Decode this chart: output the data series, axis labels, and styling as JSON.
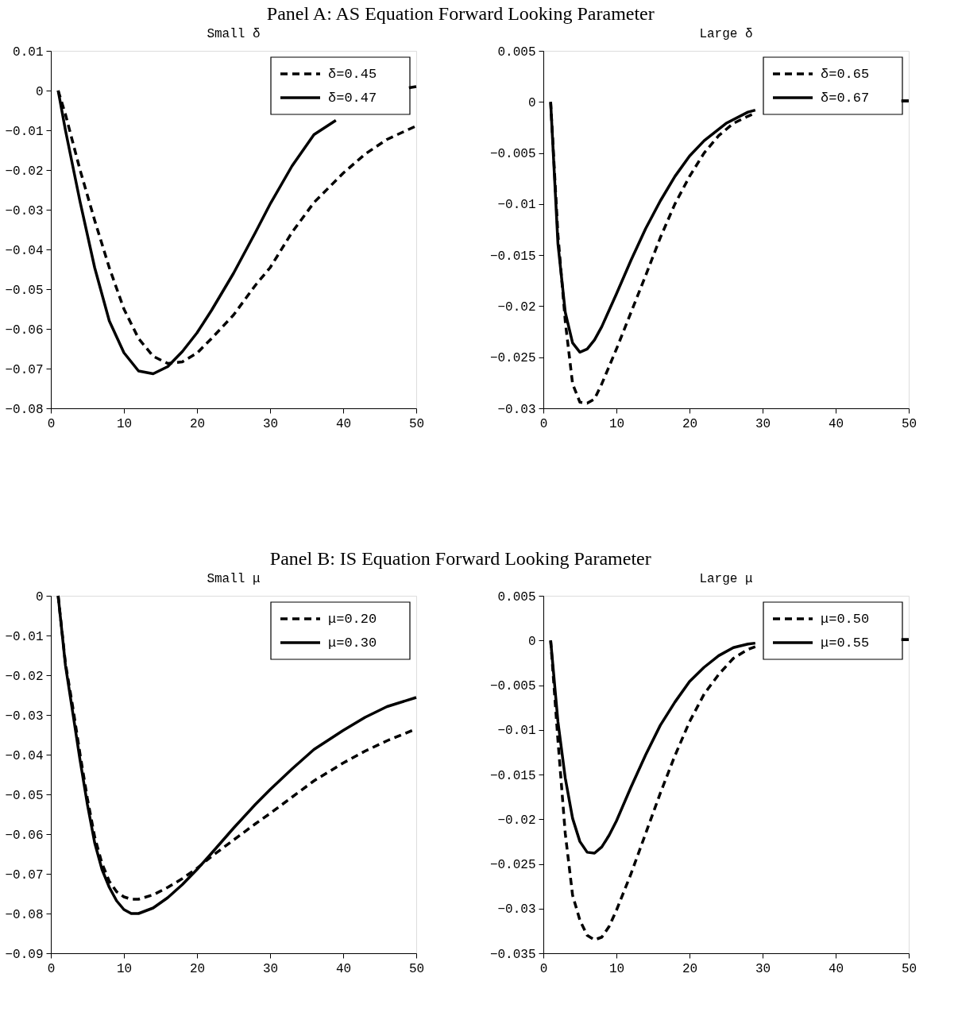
{
  "chart_data": [
    {
      "type": "line",
      "title": "Panel A: AS Equation Forward Looking Parameter",
      "subtitle": "Small δ",
      "xlim": [
        0,
        50
      ],
      "xticks": [
        0,
        10,
        20,
        30,
        40,
        50
      ],
      "ylim": [
        -0.08,
        0.01
      ],
      "yticks": [
        -0.08,
        -0.07,
        -0.06,
        -0.05,
        -0.04,
        -0.03,
        -0.02,
        -0.01,
        0,
        0.01
      ],
      "legend": "top right",
      "grid": false,
      "marker": "none",
      "series": [
        {
          "name": "δ=0.45",
          "color": "#000000",
          "line_style": "dashed",
          "x": [
            1,
            2,
            3,
            4,
            6,
            8,
            10,
            12,
            14,
            16,
            18,
            20,
            22,
            25,
            28,
            30,
            33,
            36,
            40,
            43,
            46,
            50
          ],
          "values": [
            0,
            -0.006,
            -0.013,
            -0.02,
            -0.0327,
            -0.0446,
            -0.055,
            -0.0624,
            -0.0669,
            -0.0687,
            -0.0683,
            -0.0661,
            -0.0624,
            -0.0565,
            -0.049,
            -0.0446,
            -0.0357,
            -0.0282,
            -0.0208,
            -0.016,
            -0.0123,
            -0.0089
          ]
        },
        {
          "name": "δ=0.47",
          "color": "#000000",
          "line_style": "solid",
          "x": [
            1,
            2,
            4,
            6,
            8,
            10,
            12,
            14,
            16,
            18,
            20,
            22,
            25,
            28,
            30,
            33,
            36,
            39,
            40,
            49,
            50
          ],
          "values": [
            0,
            -0.01,
            -0.028,
            -0.0446,
            -0.058,
            -0.066,
            -0.0706,
            -0.0713,
            -0.0695,
            -0.0657,
            -0.061,
            -0.0553,
            -0.046,
            -0.0357,
            -0.0286,
            -0.019,
            -0.0111,
            -0.0075,
            null,
            0.0007,
            0.001
          ]
        }
      ]
    },
    {
      "type": "line",
      "subtitle": "Large δ",
      "xlim": [
        0,
        50
      ],
      "xticks": [
        0,
        10,
        20,
        30,
        40,
        50
      ],
      "ylim": [
        -0.03,
        0.005
      ],
      "yticks": [
        -0.03,
        -0.025,
        -0.02,
        -0.015,
        -0.01,
        -0.005,
        0,
        0.005
      ],
      "legend": "top right",
      "grid": false,
      "marker": "none",
      "series": [
        {
          "name": "δ=0.65",
          "color": "#000000",
          "line_style": "dashed",
          "x": [
            1,
            2,
            3,
            4,
            5,
            6,
            7,
            8,
            10,
            12,
            14,
            16,
            18,
            20,
            22,
            24,
            26,
            28,
            29,
            30,
            49,
            50
          ],
          "values": [
            0,
            -0.013,
            -0.0215,
            -0.0276,
            -0.0294,
            -0.0295,
            -0.0291,
            -0.0276,
            -0.0242,
            -0.0206,
            -0.017,
            -0.0133,
            -0.01,
            -0.0073,
            -0.005,
            -0.0033,
            -0.0021,
            -0.0014,
            -0.0011,
            null,
            0.0001,
            0.0001
          ]
        },
        {
          "name": "δ=0.67",
          "color": "#000000",
          "line_style": "solid",
          "x": [
            1,
            2,
            3,
            4,
            5,
            6,
            7,
            8,
            10,
            12,
            14,
            16,
            18,
            20,
            22,
            25,
            28,
            29,
            30,
            49,
            50
          ],
          "values": [
            0,
            -0.0139,
            -0.0206,
            -0.0236,
            -0.0245,
            -0.0242,
            -0.0233,
            -0.022,
            -0.0188,
            -0.0155,
            -0.0124,
            -0.0097,
            -0.0073,
            -0.0053,
            -0.0038,
            -0.0021,
            -0.001,
            -0.0008,
            null,
            0.0001,
            0.0001
          ]
        }
      ]
    },
    {
      "type": "line",
      "title": "Panel B: IS Equation Forward Looking Parameter",
      "subtitle": "Small μ",
      "xlim": [
        0,
        50
      ],
      "xticks": [
        0,
        10,
        20,
        30,
        40,
        50
      ],
      "ylim": [
        -0.09,
        0
      ],
      "yticks": [
        -0.09,
        -0.08,
        -0.07,
        -0.06,
        -0.05,
        -0.04,
        -0.03,
        -0.02,
        -0.01,
        0
      ],
      "legend": "top right",
      "grid": false,
      "marker": "none",
      "series": [
        {
          "name": "μ=0.20",
          "color": "#000000",
          "line_style": "dashed",
          "x": [
            1,
            2,
            3,
            4,
            5,
            6,
            7,
            8,
            9,
            10,
            11,
            12,
            14,
            16,
            18,
            20,
            22,
            25,
            28,
            30,
            33,
            36,
            40,
            43,
            46,
            50
          ],
          "values": [
            0,
            -0.017,
            -0.028,
            -0.0399,
            -0.051,
            -0.0607,
            -0.0674,
            -0.0719,
            -0.0745,
            -0.0758,
            -0.0764,
            -0.0764,
            -0.0753,
            -0.0734,
            -0.0712,
            -0.0686,
            -0.0656,
            -0.0615,
            -0.0574,
            -0.0548,
            -0.0507,
            -0.0466,
            -0.0421,
            -0.0391,
            -0.0365,
            -0.0335
          ]
        },
        {
          "name": "μ=0.30",
          "color": "#000000",
          "line_style": "solid",
          "x": [
            1,
            2,
            3,
            4,
            5,
            6,
            7,
            8,
            9,
            10,
            11,
            12,
            14,
            16,
            18,
            20,
            22,
            25,
            28,
            30,
            33,
            36,
            40,
            43,
            46,
            50
          ],
          "values": [
            0,
            -0.0175,
            -0.0294,
            -0.0414,
            -0.0525,
            -0.0622,
            -0.0689,
            -0.0734,
            -0.0768,
            -0.079,
            -0.08,
            -0.08,
            -0.0786,
            -0.076,
            -0.0727,
            -0.0689,
            -0.0648,
            -0.0585,
            -0.0525,
            -0.0488,
            -0.0436,
            -0.0387,
            -0.0339,
            -0.0306,
            -0.0279,
            -0.0256
          ]
        }
      ]
    },
    {
      "type": "line",
      "subtitle": "Large μ",
      "xlim": [
        0,
        50
      ],
      "xticks": [
        0,
        10,
        20,
        30,
        40,
        50
      ],
      "ylim": [
        -0.035,
        0.005
      ],
      "yticks": [
        -0.035,
        -0.03,
        -0.025,
        -0.02,
        -0.015,
        -0.01,
        -0.005,
        0,
        0.005
      ],
      "legend": "top right",
      "grid": false,
      "marker": "none",
      "series": [
        {
          "name": "μ=0.50",
          "color": "#000000",
          "line_style": "dashed",
          "x": [
            1,
            2,
            3,
            4,
            5,
            6,
            7,
            8,
            9,
            10,
            12,
            14,
            16,
            18,
            20,
            22,
            24,
            26,
            28,
            29,
            30,
            49,
            50
          ],
          "values": [
            0,
            -0.0112,
            -0.0216,
            -0.0285,
            -0.0313,
            -0.033,
            -0.0335,
            -0.0332,
            -0.032,
            -0.0302,
            -0.0261,
            -0.0216,
            -0.0171,
            -0.0129,
            -0.0091,
            -0.006,
            -0.0038,
            -0.002,
            -0.001,
            -0.0007,
            null,
            0.0001,
            0.0001
          ]
        },
        {
          "name": "μ=0.55",
          "color": "#000000",
          "line_style": "solid",
          "x": [
            1,
            2,
            3,
            4,
            5,
            6,
            7,
            8,
            9,
            10,
            12,
            14,
            16,
            18,
            20,
            22,
            24,
            26,
            28,
            29,
            30,
            49,
            50
          ],
          "values": [
            0,
            -0.0091,
            -0.0154,
            -0.0199,
            -0.0225,
            -0.0237,
            -0.0238,
            -0.0231,
            -0.0218,
            -0.0202,
            -0.0164,
            -0.0128,
            -0.0095,
            -0.0069,
            -0.0046,
            -0.003,
            -0.0017,
            -0.0008,
            -0.0004,
            -0.0003,
            null,
            0.0001,
            0.0001
          ]
        }
      ]
    }
  ]
}
